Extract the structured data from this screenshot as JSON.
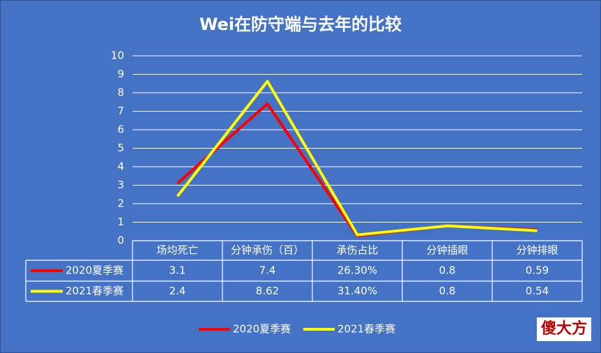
{
  "chart_data": {
    "type": "line",
    "title": "Wei在防守端与去年的比较",
    "categories": [
      "场均死亡",
      "分钟承伤（百）",
      "承伤占比",
      "分钟插眼",
      "分钟排眼"
    ],
    "series": [
      {
        "name": "2020夏季赛",
        "color": "#ff0000",
        "values": [
          3.1,
          7.4,
          0.263,
          0.8,
          0.59
        ],
        "value_labels": [
          "3.1",
          "7.4",
          "26.30%",
          "0.8",
          "0.59"
        ]
      },
      {
        "name": "2021春季赛",
        "color": "#ffff00",
        "values": [
          2.4,
          8.62,
          0.314,
          0.8,
          0.54
        ],
        "value_labels": [
          "2.4",
          "8.62",
          "31.40%",
          "0.8",
          "0.54"
        ]
      }
    ],
    "ylim": [
      0,
      10
    ],
    "yticks": [
      0,
      1,
      2,
      3,
      4,
      5,
      6,
      7,
      8,
      9,
      10
    ],
    "grid": true,
    "legend": "bottom"
  },
  "watermark": "傻大方"
}
